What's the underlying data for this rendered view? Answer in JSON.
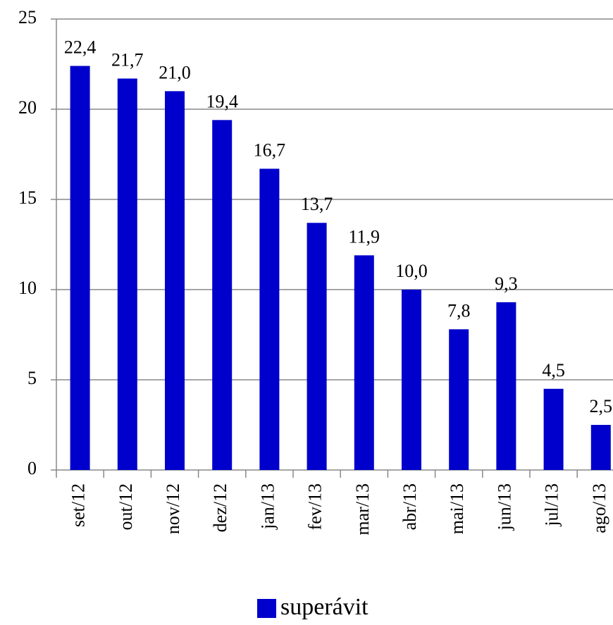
{
  "chart_data": {
    "type": "bar",
    "categories": [
      "set/12",
      "out/12",
      "nov/12",
      "dez/12",
      "jan/13",
      "fev/13",
      "mar/13",
      "abr/13",
      "mai/13",
      "jun/13",
      "jul/13",
      "ago/13"
    ],
    "series": [
      {
        "name": "superávit",
        "color": "#0000cc",
        "values": [
          22.4,
          21.7,
          21.0,
          19.4,
          16.7,
          13.7,
          11.9,
          10.0,
          7.8,
          9.3,
          4.5,
          2.5
        ],
        "value_labels": [
          "22,4",
          "21,7",
          "21,0",
          "19,4",
          "16,7",
          "13,7",
          "11,9",
          "10,0",
          "7,8",
          "9,3",
          "4,5",
          "2,5"
        ]
      }
    ],
    "ylim": [
      0,
      25
    ],
    "yticks": [
      0,
      5,
      10,
      15,
      20,
      25
    ],
    "grid": true,
    "legend": "bottom"
  }
}
